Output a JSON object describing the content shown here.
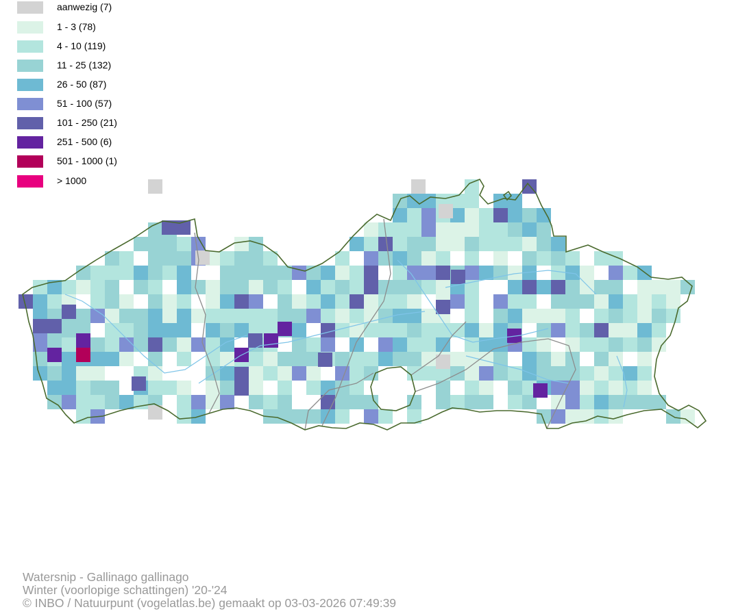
{
  "legend": {
    "items": [
      {
        "label": "aanwezig (7)",
        "color": "#d3d3d3"
      },
      {
        "label": "1 - 3 (78)",
        "color": "#dcf3e7"
      },
      {
        "label": "4 - 10 (119)",
        "color": "#b3e5de"
      },
      {
        "label": "11 - 25 (132)",
        "color": "#98d3d4"
      },
      {
        "label": "26 - 50 (87)",
        "color": "#6ebad3"
      },
      {
        "label": "51 - 100 (57)",
        "color": "#7f8fd3"
      },
      {
        "label": "101 - 250 (21)",
        "color": "#6160aa"
      },
      {
        "label": "251 - 500 (6)",
        "color": "#6323a0"
      },
      {
        "label": "501 - 1000 (1)",
        "color": "#b20059"
      },
      {
        "label": "> 1000",
        "color": "#e8007f"
      }
    ]
  },
  "map": {
    "border_color": "#4a6a2e",
    "province_border_color": "#8c8c8c",
    "river_color": "#7ec4e8"
  },
  "footer": {
    "line1": "Watersnip - Gallinago gallinago",
    "line2": "Winter (voorlopige schattingen) '20-'24",
    "line3": "© INBO / Natuurpunt (vogelatlas.be) gemaakt op 03-03-2026 07:49:39"
  }
}
